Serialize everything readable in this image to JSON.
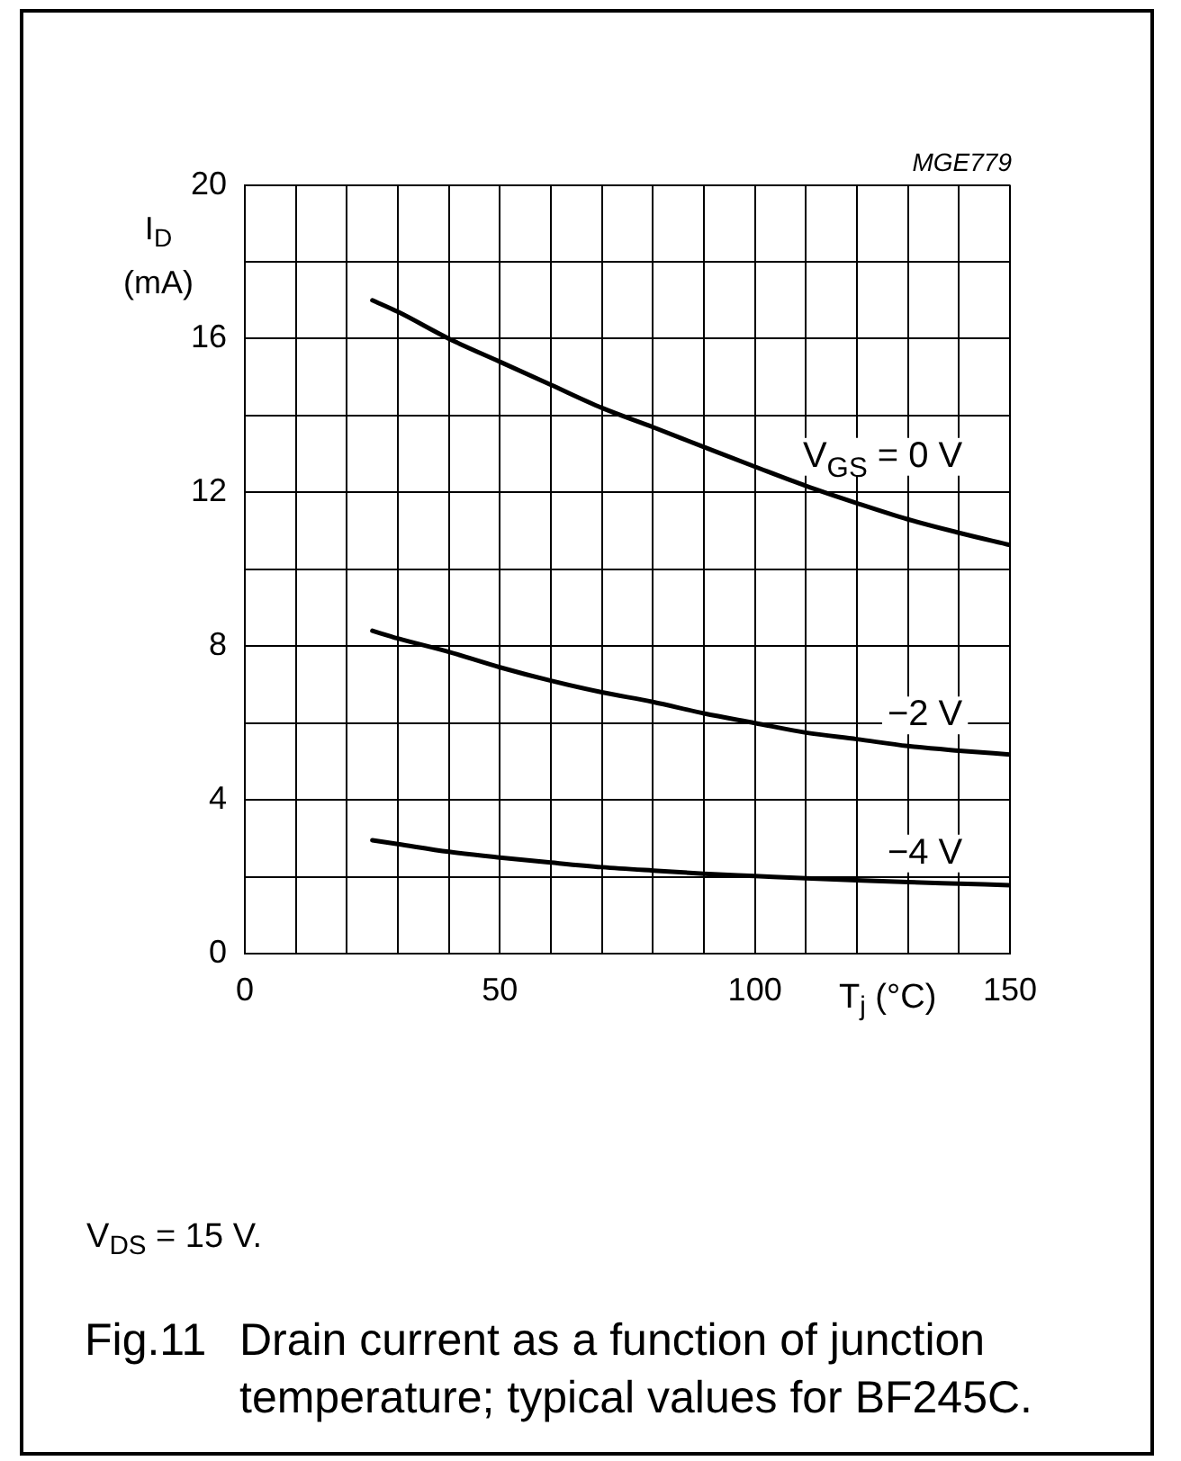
{
  "chart_data": {
    "type": "line",
    "title": "Fig.11 Drain current as a function of junction temperature; typical values for BF245C.",
    "xlabel": "T$_{j}$ (°C)",
    "ylabel": "I$_{D}$ (mA)",
    "annotations": [
      "MGE779",
      "V$_{DS}$ = 15 V."
    ],
    "x": [
      25,
      30,
      40,
      50,
      60,
      70,
      80,
      90,
      100,
      110,
      120,
      130,
      140,
      150
    ],
    "series": [
      {
        "name": "V$_{GS}$ = 0 V",
        "color": "#000000",
        "values": [
          17,
          16.7,
          16,
          15.4,
          14.8,
          14.2,
          13.7,
          13.18,
          12.67,
          12.17,
          11.72,
          11.3,
          10.95,
          10.63
        ]
      },
      {
        "name": "−2 V",
        "color": "#000000",
        "values": [
          8.4,
          8.2,
          7.85,
          7.45,
          7.1,
          6.8,
          6.55,
          6.25,
          6,
          5.75,
          5.58,
          5.4,
          5.28,
          5.18
        ]
      },
      {
        "name": "−4 V",
        "color": "#000000",
        "values": [
          2.95,
          2.85,
          2.65,
          2.5,
          2.37,
          2.25,
          2.16,
          2.08,
          2.02,
          1.96,
          1.91,
          1.86,
          1.82,
          1.78
        ]
      }
    ],
    "xlim": [
      0,
      150
    ],
    "ylim": [
      0,
      20
    ],
    "xticks": [
      0,
      {
        "value": 10,
        "label": null
      },
      {
        "value": 20,
        "label": null
      },
      {
        "value": 30,
        "label": null
      },
      {
        "value": 40,
        "label": null
      },
      50,
      {
        "value": 60,
        "label": null
      },
      {
        "value": 70,
        "label": null
      },
      {
        "value": 80,
        "label": null
      },
      {
        "value": 90,
        "label": null
      },
      100,
      {
        "value": 110,
        "label": null
      },
      {
        "value": 120,
        "label": null
      },
      {
        "value": 130,
        "label": null
      },
      {
        "value": 140,
        "label": null
      },
      150
    ],
    "yticks": [
      0,
      {
        "value": 2,
        "label": null
      },
      4,
      {
        "value": 6,
        "label": null
      },
      8,
      {
        "value": 10,
        "label": null
      },
      12,
      {
        "value": 14,
        "label": null
      },
      16,
      {
        "value": 18,
        "label": null
      },
      20
    ],
    "grid": true,
    "marker": "none",
    "line_style": "solid"
  }
}
